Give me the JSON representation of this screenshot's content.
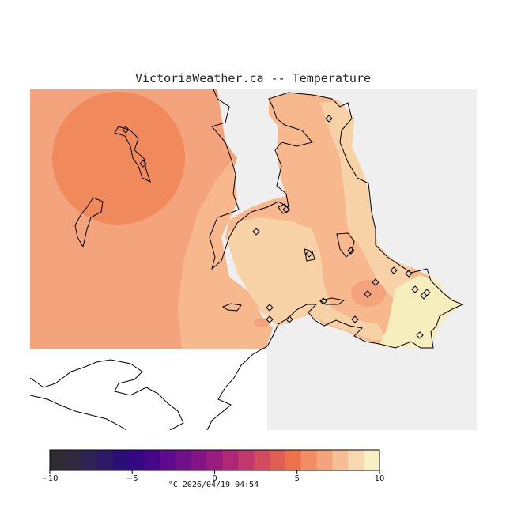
{
  "title": "VictoriaWeather.ca -- Temperature",
  "colors": {
    "no_data": "#efefef",
    "ocean_blank": "#ffffff",
    "coast": "#000000",
    "station": "#000000"
  },
  "map_fills": [
    {
      "name": "zone-warm-core",
      "value": 5.5
    },
    {
      "name": "zone-warm",
      "value": 6.5
    },
    {
      "name": "zone-mild",
      "value": 7.5
    },
    {
      "name": "zone-cool",
      "value": 8.5
    },
    {
      "name": "zone-coolest",
      "value": 9.5
    }
  ],
  "stations_count": 20,
  "colorbar": {
    "min": -10,
    "max": 10,
    "ticks": [
      "−10",
      "−5",
      "0",
      "5",
      "10"
    ],
    "colors": [
      "#2f2b33",
      "#30283f",
      "#2f2255",
      "#2c1a67",
      "#2a0f77",
      "#330882",
      "#480789",
      "#5d0a8c",
      "#700f8a",
      "#841485",
      "#9b1c7f",
      "#ae2877",
      "#c1386d",
      "#d24b61",
      "#e05f55",
      "#eb7349",
      "#f18c64",
      "#f4a47c",
      "#f6be95",
      "#f7d8b0",
      "#f7f0c4"
    ]
  },
  "footer": "°C  2026/04/19 04:54"
}
